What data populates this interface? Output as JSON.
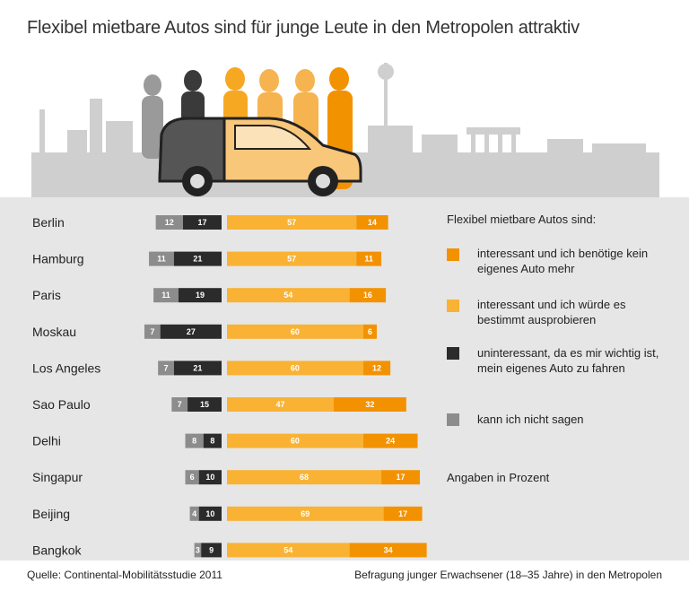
{
  "title": "Flexibel mietbare Autos sind für junge Leute in den Metropolen attraktiv",
  "colors": {
    "orange_dark": "#f39200",
    "orange_light": "#f9b233",
    "black": "#2b2b2b",
    "gray": "#8c8c8c",
    "panel": "#e6e6e6",
    "skyline": "#cfcfcf"
  },
  "legend": {
    "title": "Flexibel mietbare Autos sind:",
    "items": [
      {
        "label": "interessant und ich benötige kein eigenes Auto mehr",
        "color": "#f39200"
      },
      {
        "label": "interessant und ich würde es bestimmt ausprobieren",
        "color": "#f9b233"
      },
      {
        "label": "uninteressant, da es mir wichtig ist, mein eigenes Auto zu fahren",
        "color": "#2b2b2b"
      },
      {
        "label": "kann ich nicht sagen",
        "color": "#8c8c8c"
      }
    ],
    "note": "Angaben in Prozent"
  },
  "footer": {
    "source": "Quelle: Continental-Mobilitätsstudie 2011",
    "survey": "Befragung junger Erwachsener (18–35 Jahre) in den Metropolen"
  },
  "chart_data": {
    "type": "bar",
    "stacked": "diverging",
    "categories": [
      "Berlin",
      "Hamburg",
      "Paris",
      "Moskau",
      "Los Angeles",
      "Sao Paulo",
      "Delhi",
      "Singapur",
      "Beijing",
      "Bangkok"
    ],
    "series": [
      {
        "name": "kann ich nicht sagen",
        "side": "left",
        "color": "#8c8c8c",
        "values": [
          12,
          11,
          11,
          7,
          7,
          7,
          8,
          6,
          4,
          3
        ]
      },
      {
        "name": "uninteressant, da es mir wichtig ist, mein eigenes Auto zu fahren",
        "side": "left",
        "color": "#2b2b2b",
        "values": [
          17,
          21,
          19,
          27,
          21,
          15,
          8,
          10,
          10,
          9
        ]
      },
      {
        "name": "interessant und ich würde es bestimmt ausprobieren",
        "side": "right",
        "color": "#f9b233",
        "values": [
          57,
          57,
          54,
          60,
          60,
          47,
          60,
          68,
          69,
          54
        ]
      },
      {
        "name": "interessant und ich benötige kein eigenes Auto mehr",
        "side": "right",
        "color": "#f39200",
        "values": [
          14,
          11,
          16,
          6,
          12,
          32,
          24,
          17,
          17,
          34
        ]
      }
    ],
    "unit": "Angaben in Prozent",
    "legend_position": "right"
  }
}
